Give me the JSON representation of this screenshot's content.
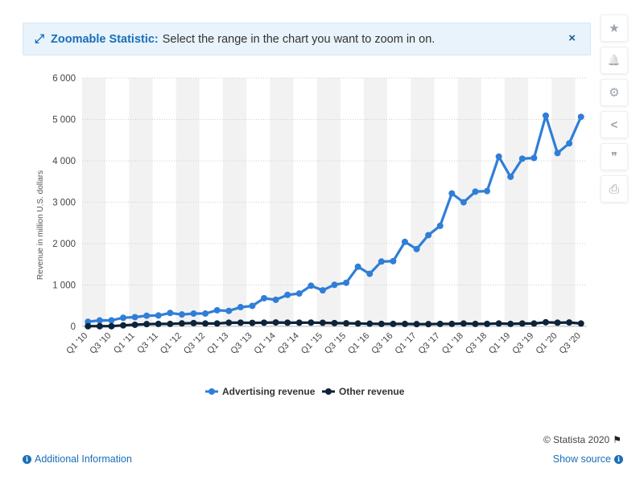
{
  "banner": {
    "title": "Zoomable Statistic:",
    "text": "Select the range in the chart you want to zoom in on.",
    "close_glyph": "×"
  },
  "toolbar": [
    {
      "name": "star-icon",
      "glyph": "★"
    },
    {
      "name": "bell-icon",
      "glyph": "🔔"
    },
    {
      "name": "gear-icon",
      "glyph": "⚙"
    },
    {
      "name": "share-icon",
      "glyph": "<"
    },
    {
      "name": "quote-icon",
      "glyph": "❞"
    },
    {
      "name": "print-icon",
      "glyph": "⎙"
    }
  ],
  "footer": {
    "copyright": "© Statista 2020",
    "additional_info": "Additional Information",
    "show_source": "Show source"
  },
  "chart_data": {
    "type": "line",
    "title": "",
    "xlabel": "",
    "ylabel": "Revenue in million U.S. dollars",
    "ylim": [
      0,
      6000
    ],
    "yticks": [
      0,
      1000,
      2000,
      3000,
      4000,
      5000,
      6000
    ],
    "ytick_labels": [
      "0",
      "1 000",
      "2 000",
      "3 000",
      "4 000",
      "5 000",
      "6 000"
    ],
    "grid": true,
    "legend_position": "bottom",
    "categories": [
      "Q1 '10",
      "Q2 '10",
      "Q3 '10",
      "Q4 '10",
      "Q1 '11",
      "Q2 '11",
      "Q3 '11",
      "Q4 '11",
      "Q1 '12",
      "Q2 '12",
      "Q3 '12",
      "Q4 '12",
      "Q1 '13",
      "Q2 '13",
      "Q3 '13",
      "Q4 '13",
      "Q1 '14",
      "Q2 '14",
      "Q3 '14",
      "Q4 '14",
      "Q1 '15",
      "Q2 '15",
      "Q3 '15",
      "Q4 '15",
      "Q1 '16",
      "Q2 '16",
      "Q3 '16",
      "Q4 '16",
      "Q1 '17",
      "Q2 '17",
      "Q3 '17",
      "Q4 '17",
      "Q1 '18",
      "Q2 '18",
      "Q3 '18",
      "Q4 '18",
      "Q1 '19",
      "Q2 '19",
      "Q3 '19",
      "Q4 '19",
      "Q1 '20",
      "Q2 '20",
      "Q3 '20"
    ],
    "tick_labels": [
      "Q1 '10",
      "Q3 '10",
      "Q1 '11",
      "Q3 '11",
      "Q1 '12",
      "Q3 '12",
      "Q1 '13",
      "Q3 '13",
      "Q1 '14",
      "Q3 '14",
      "Q1 '15",
      "Q3 '15",
      "Q1 '16",
      "Q3 '16",
      "Q1 '17",
      "Q3 '17",
      "Q1 '18",
      "Q3 '18",
      "Q1 '19",
      "Q3 '19",
      "Q1 '20",
      "Q3 '20"
    ],
    "series": [
      {
        "name": "Advertising revenue",
        "color": "#2f7ed8",
        "values": [
          112,
          145,
          146,
          209,
          224,
          258,
          264,
          325,
          288,
          310,
          310,
          390,
          375,
          465,
          496,
          680,
          642,
          761,
          794,
          982,
          871,
          1005,
          1054,
          1441,
          1270,
          1567,
          1575,
          2042,
          1867,
          2205,
          2429,
          3212,
          2998,
          3255,
          3269,
          4101,
          3614,
          4051,
          4068,
          5090,
          4186,
          4421,
          5061
        ]
      },
      {
        "name": "Other revenue",
        "color": "#0d233a",
        "values": [
          5,
          5,
          5,
          25,
          40,
          55,
          60,
          60,
          72,
          80,
          70,
          70,
          90,
          90,
          85,
          90,
          95,
          90,
          90,
          92,
          88,
          80,
          75,
          70,
          65,
          60,
          60,
          60,
          55,
          55,
          60,
          60,
          70,
          60,
          60,
          70,
          60,
          70,
          70,
          100,
          90,
          95,
          70
        ]
      }
    ]
  }
}
